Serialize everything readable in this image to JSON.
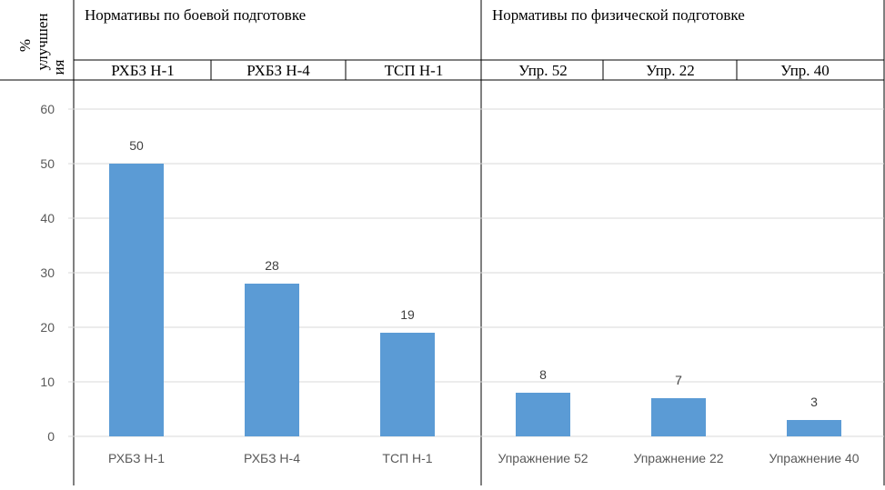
{
  "header": {
    "yaxis_label_line1": "%",
    "yaxis_label_line2": "улучшен",
    "yaxis_label_line3": "ия",
    "group1_title": "Нормативы по боевой подготовке",
    "group2_title": "Нормативы по физической подготовке",
    "group1_subheaders": [
      "РХБЗ Н-1",
      "РХБЗ Н-4",
      "ТСП Н-1"
    ],
    "group2_subheaders": [
      "Упр. 52",
      "Упр. 22",
      "Упр. 40"
    ]
  },
  "chart_data": {
    "type": "bar",
    "categories": [
      "РХБЗ Н-1",
      "РХБЗ Н-4",
      "ТСП Н-1",
      "Упражнение 52",
      "Упражнение 22",
      "Упражнение 40"
    ],
    "values": [
      50,
      28,
      19,
      8,
      7,
      3
    ],
    "data_labels": [
      "50",
      "28",
      "19",
      "8",
      "7",
      "3"
    ],
    "ylim": [
      0,
      60
    ],
    "yticks": [
      0,
      10,
      20,
      30,
      40,
      50,
      60
    ],
    "grid": true,
    "legend": "none",
    "bar_color": "#5b9bd5",
    "grid_color": "#d9d9d9"
  }
}
